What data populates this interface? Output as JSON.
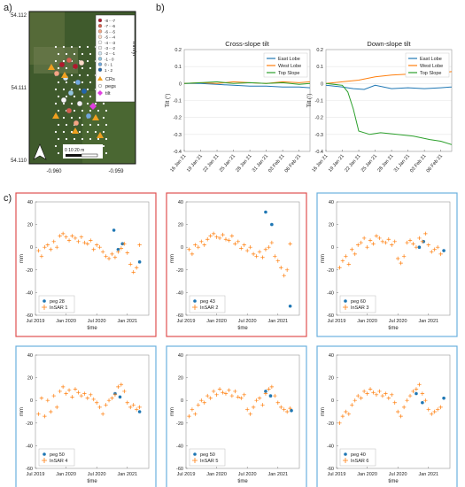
{
  "panel_labels": [
    "a)",
    "b)",
    "c)"
  ],
  "map": {
    "y_ticks": [
      "54.112",
      "54.111",
      "54.110"
    ],
    "x_ticks": [
      "-0.960",
      "-0.959"
    ],
    "legend_title": "mm/yr",
    "legend_items": [
      "-8 - -7",
      "-7 - -6",
      "-6 - -5",
      "-5 - -4",
      "-4 - -3",
      "-3 - -2",
      "-2 - -1",
      "-1 - 0",
      "0 - 1",
      "1 - 2"
    ],
    "legend_colors": [
      "#b2182b",
      "#d6604d",
      "#f4a582",
      "#fddbc7",
      "#f7f7f7",
      "#f0f0f0",
      "#d1e5f0",
      "#92c5de",
      "#6fa8dc",
      "#2166ac"
    ],
    "markers": [
      {
        "label": "CRs",
        "color": "#f0a020"
      },
      {
        "label": "pegs",
        "color": "#ffffff"
      },
      {
        "label": "tilt",
        "color": "#e040e0"
      }
    ],
    "scale_label": "0  10 20 m"
  },
  "chart_data": [
    {
      "type": "line",
      "title": "Cross-slope tilt",
      "ylabel": "Tilt (°)",
      "ylim": [
        -0.4,
        0.2
      ],
      "yticks": [
        "0.2",
        "0.1",
        "0",
        "-0.1",
        "-0.2",
        "-0.3",
        "-0.4"
      ],
      "xlim": [
        "2021-01-16",
        "2021-02-08"
      ],
      "xticks": [
        "16 Jan 21",
        "19 Jan 21",
        "22 Jan 21",
        "25 Jan 21",
        "28 Jan 21",
        "31 Jan 21",
        "03 Feb 21",
        "06 Feb 21"
      ],
      "legend": "top-right",
      "series": [
        {
          "name": "East Lobe",
          "color": "#1f77b4",
          "x": [
            "2021-01-16",
            "2021-01-19",
            "2021-01-22",
            "2021-01-25",
            "2021-01-28",
            "2021-01-31",
            "2021-02-03",
            "2021-02-06",
            "2021-02-08"
          ],
          "y": [
            0.0,
            0.0,
            -0.005,
            -0.01,
            -0.015,
            -0.015,
            -0.02,
            -0.02,
            -0.025
          ]
        },
        {
          "name": "West Lobe",
          "color": "#ff7f0e",
          "x": [
            "2021-01-16",
            "2021-01-19",
            "2021-01-22",
            "2021-01-25",
            "2021-01-28",
            "2021-01-31",
            "2021-02-03",
            "2021-02-06",
            "2021-02-08"
          ],
          "y": [
            0.0,
            0.005,
            0.0,
            0.01,
            0.005,
            0.0,
            0.01,
            0.005,
            0.01
          ]
        },
        {
          "name": "Top Slope",
          "color": "#2ca02c",
          "x": [
            "2021-01-16",
            "2021-01-19",
            "2021-01-22",
            "2021-01-25",
            "2021-01-28",
            "2021-01-31",
            "2021-02-03",
            "2021-02-06",
            "2021-02-08"
          ],
          "y": [
            0.0,
            0.005,
            0.01,
            0.0,
            0.005,
            0.0,
            0.005,
            -0.005,
            0.0
          ]
        }
      ]
    },
    {
      "type": "line",
      "title": "Down-slope tilt",
      "ylabel": "Tilt (°)",
      "ylim": [
        -0.4,
        0.2
      ],
      "yticks": [
        "0.2",
        "0.1",
        "0",
        "-0.1",
        "-0.2",
        "-0.3",
        "-0.4"
      ],
      "xlim": [
        "2021-01-16",
        "2021-02-08"
      ],
      "xticks": [
        "16 Jan 21",
        "19 Jan 21",
        "22 Jan 21",
        "25 Jan 21",
        "28 Jan 21",
        "31 Jan 21",
        "03 Feb 21",
        "06 Feb 21"
      ],
      "legend": "top-right",
      "series": [
        {
          "name": "East Lobe",
          "color": "#1f77b4",
          "x": [
            "2021-01-16",
            "2021-01-19",
            "2021-01-21",
            "2021-01-23",
            "2021-01-25",
            "2021-01-28",
            "2021-01-31",
            "2021-02-03",
            "2021-02-06",
            "2021-02-08"
          ],
          "y": [
            -0.01,
            -0.02,
            -0.03,
            -0.035,
            -0.01,
            -0.03,
            -0.025,
            -0.03,
            -0.025,
            -0.02
          ]
        },
        {
          "name": "West Lobe",
          "color": "#ff7f0e",
          "x": [
            "2021-01-16",
            "2021-01-19",
            "2021-01-22",
            "2021-01-25",
            "2021-01-28",
            "2021-01-31",
            "2021-02-03",
            "2021-02-06",
            "2021-02-08"
          ],
          "y": [
            0.0,
            0.01,
            0.02,
            0.04,
            0.05,
            0.055,
            0.06,
            0.065,
            0.07
          ]
        },
        {
          "name": "Top Slope",
          "color": "#2ca02c",
          "x": [
            "2021-01-16",
            "2021-01-19",
            "2021-01-20",
            "2021-01-21",
            "2021-01-22",
            "2021-01-24",
            "2021-01-26",
            "2021-01-29",
            "2021-02-01",
            "2021-02-04",
            "2021-02-06",
            "2021-02-08"
          ],
          "y": [
            0.0,
            -0.01,
            -0.05,
            -0.15,
            -0.28,
            -0.3,
            -0.29,
            -0.3,
            -0.31,
            -0.33,
            -0.34,
            -0.36
          ]
        }
      ]
    },
    {
      "type": "scatter",
      "ylabel": "mm",
      "xlabel": "time",
      "ylim": [
        -60,
        40
      ],
      "yticks": [
        "40",
        "20",
        "0",
        "-20",
        "-40",
        "-60"
      ],
      "xlim": [
        2019.5,
        2021.35
      ],
      "xticks": [
        "Jul 2019",
        "Jan 2020",
        "Jul 2020",
        "Jan 2021"
      ],
      "xtick_values": [
        2019.5,
        2020.0,
        2020.5,
        2021.0
      ],
      "legend": "bottom-left",
      "frame_color": "#e05050",
      "series": [
        {
          "name": "peg 28",
          "marker": "dot",
          "color": "#1f77b4",
          "x": [
            2020.78,
            2020.85,
            2020.92,
            2021.2
          ],
          "y": [
            15,
            -2,
            3,
            -13
          ]
        },
        {
          "name": "InSAR 1",
          "marker": "plus",
          "color": "#ff7f0e",
          "x": [
            2019.55,
            2019.6,
            2019.65,
            2019.7,
            2019.75,
            2019.8,
            2019.85,
            2019.9,
            2019.95,
            2020.0,
            2020.05,
            2020.1,
            2020.15,
            2020.2,
            2020.25,
            2020.3,
            2020.35,
            2020.4,
            2020.45,
            2020.5,
            2020.55,
            2020.6,
            2020.65,
            2020.7,
            2020.75,
            2020.8,
            2020.85,
            2020.9,
            2020.95,
            2021.0,
            2021.05,
            2021.1,
            2021.15,
            2021.2
          ],
          "y": [
            -3,
            -8,
            0,
            2,
            -2,
            5,
            0,
            10,
            12,
            9,
            6,
            10,
            8,
            5,
            9,
            4,
            3,
            6,
            -2,
            2,
            0,
            -4,
            -8,
            -10,
            -6,
            -9,
            -4,
            -1,
            3,
            -5,
            -15,
            -22,
            -18,
            2
          ]
        }
      ]
    },
    {
      "type": "scatter",
      "ylabel": "mm",
      "xlabel": "time",
      "ylim": [
        -60,
        40
      ],
      "yticks": [
        "40",
        "20",
        "0",
        "-20",
        "-40",
        "-60"
      ],
      "xlim": [
        2019.5,
        2021.35
      ],
      "xticks": [
        "Jul 2019",
        "Jan 2020",
        "Jul 2020",
        "Jan 2021"
      ],
      "xtick_values": [
        2019.5,
        2020.0,
        2020.5,
        2021.0
      ],
      "legend": "bottom-left",
      "frame_color": "#e05050",
      "series": [
        {
          "name": "peg 43",
          "marker": "dot",
          "color": "#1f77b4",
          "x": [
            2020.8,
            2020.9,
            2021.2
          ],
          "y": [
            31,
            20,
            -52
          ]
        },
        {
          "name": "InSAR 2",
          "marker": "plus",
          "color": "#ff7f0e",
          "x": [
            2019.55,
            2019.6,
            2019.65,
            2019.7,
            2019.75,
            2019.8,
            2019.85,
            2019.9,
            2019.95,
            2020.0,
            2020.05,
            2020.1,
            2020.15,
            2020.2,
            2020.25,
            2020.3,
            2020.35,
            2020.4,
            2020.45,
            2020.5,
            2020.55,
            2020.6,
            2020.65,
            2020.7,
            2020.75,
            2020.8,
            2020.85,
            2020.9,
            2020.95,
            2021.0,
            2021.05,
            2021.1,
            2021.15,
            2021.2
          ],
          "y": [
            -2,
            -6,
            2,
            0,
            5,
            2,
            7,
            10,
            12,
            9,
            8,
            11,
            7,
            6,
            10,
            3,
            5,
            -1,
            2,
            -3,
            0,
            -6,
            -8,
            -4,
            -9,
            -2,
            0,
            4,
            -8,
            -12,
            -18,
            -25,
            -20,
            3
          ]
        }
      ]
    },
    {
      "type": "scatter",
      "ylabel": "mm",
      "xlabel": "time",
      "ylim": [
        -60,
        40
      ],
      "yticks": [
        "40",
        "20",
        "0",
        "-20",
        "-40",
        "-60"
      ],
      "xlim": [
        2019.5,
        2021.35
      ],
      "xticks": [
        "Jul 2019",
        "Jan 2020",
        "Jul 2020",
        "Jan 2021"
      ],
      "xtick_values": [
        2019.5,
        2020.0,
        2020.5,
        2021.0
      ],
      "legend": "bottom-left",
      "frame_color": "#6ab0de",
      "series": [
        {
          "name": "peg 60",
          "marker": "dot",
          "color": "#1f77b4",
          "x": [
            2020.85,
            2020.92,
            2021.25
          ],
          "y": [
            0,
            5,
            -3
          ]
        },
        {
          "name": "InSAR 3",
          "marker": "plus",
          "color": "#ff7f0e",
          "x": [
            2019.55,
            2019.6,
            2019.65,
            2019.7,
            2019.75,
            2019.8,
            2019.85,
            2019.9,
            2019.95,
            2020.0,
            2020.05,
            2020.1,
            2020.15,
            2020.2,
            2020.25,
            2020.3,
            2020.35,
            2020.4,
            2020.45,
            2020.5,
            2020.55,
            2020.6,
            2020.65,
            2020.7,
            2020.75,
            2020.8,
            2020.85,
            2020.9,
            2020.95,
            2021.0,
            2021.05,
            2021.1,
            2021.15,
            2021.2
          ],
          "y": [
            -18,
            -12,
            -8,
            -15,
            -2,
            -6,
            2,
            4,
            8,
            0,
            6,
            3,
            10,
            8,
            5,
            4,
            7,
            2,
            5,
            -10,
            -14,
            -8,
            4,
            6,
            3,
            0,
            8,
            5,
            12,
            2,
            -4,
            -2,
            0,
            -6
          ]
        }
      ]
    },
    {
      "type": "scatter",
      "ylabel": "mm",
      "xlabel": "time",
      "ylim": [
        -60,
        40
      ],
      "yticks": [
        "40",
        "20",
        "0",
        "-20",
        "-40",
        "-60"
      ],
      "xlim": [
        2019.5,
        2021.35
      ],
      "xticks": [
        "Jul 2019",
        "Jan 2020",
        "Jul 2020",
        "Jan 2021"
      ],
      "xtick_values": [
        2019.5,
        2020.0,
        2020.5,
        2021.0
      ],
      "legend": "bottom-left",
      "frame_color": "#6ab0de",
      "series": [
        {
          "name": "peg 50",
          "marker": "dot",
          "color": "#1f77b4",
          "x": [
            2020.8,
            2020.88,
            2021.2
          ],
          "y": [
            6,
            3,
            -10
          ]
        },
        {
          "name": "InSAR 4",
          "marker": "plus",
          "color": "#ff7f0e",
          "x": [
            2019.55,
            2019.6,
            2019.65,
            2019.7,
            2019.75,
            2019.8,
            2019.85,
            2019.9,
            2019.95,
            2020.0,
            2020.05,
            2020.1,
            2020.15,
            2020.2,
            2020.25,
            2020.3,
            2020.35,
            2020.4,
            2020.45,
            2020.5,
            2020.55,
            2020.6,
            2020.65,
            2020.7,
            2020.75,
            2020.8,
            2020.85,
            2020.9,
            2020.95,
            2021.0,
            2021.05,
            2021.1,
            2021.15,
            2021.2
          ],
          "y": [
            -12,
            2,
            -14,
            0,
            -10,
            4,
            -6,
            8,
            12,
            6,
            9,
            3,
            10,
            7,
            4,
            6,
            2,
            5,
            1,
            -2,
            -6,
            -12,
            -4,
            0,
            2,
            5,
            12,
            14,
            8,
            -2,
            -6,
            -4,
            -8,
            -6
          ]
        }
      ]
    },
    {
      "type": "scatter",
      "ylabel": "mm",
      "xlabel": "time",
      "ylim": [
        -60,
        40
      ],
      "yticks": [
        "40",
        "20",
        "0",
        "-20",
        "-40",
        "-60"
      ],
      "xlim": [
        2019.5,
        2021.35
      ],
      "xticks": [
        "Jul 2019",
        "Jan 2020",
        "Jul 2020",
        "Jan 2021"
      ],
      "xtick_values": [
        2019.5,
        2020.0,
        2020.5,
        2021.0
      ],
      "legend": "bottom-left",
      "frame_color": "#6ab0de",
      "series": [
        {
          "name": "peg 50",
          "marker": "dot",
          "color": "#1f77b4",
          "x": [
            2020.8,
            2020.88,
            2021.22
          ],
          "y": [
            8,
            4,
            -9
          ]
        },
        {
          "name": "InSAR 5",
          "marker": "plus",
          "color": "#ff7f0e",
          "x": [
            2019.55,
            2019.6,
            2019.65,
            2019.7,
            2019.75,
            2019.8,
            2019.85,
            2019.9,
            2019.95,
            2020.0,
            2020.05,
            2020.1,
            2020.15,
            2020.2,
            2020.25,
            2020.3,
            2020.35,
            2020.4,
            2020.45,
            2020.5,
            2020.55,
            2020.6,
            2020.65,
            2020.7,
            2020.75,
            2020.8,
            2020.85,
            2020.9,
            2020.95,
            2021.0,
            2021.05,
            2021.1,
            2021.15,
            2021.2
          ],
          "y": [
            -14,
            -8,
            -12,
            -4,
            0,
            -2,
            4,
            2,
            8,
            5,
            10,
            7,
            6,
            9,
            4,
            8,
            3,
            2,
            5,
            -8,
            -12,
            -6,
            0,
            2,
            -4,
            6,
            10,
            12,
            4,
            -2,
            -6,
            -8,
            -10,
            -7
          ]
        }
      ]
    },
    {
      "type": "scatter",
      "ylabel": "mm",
      "xlabel": "time",
      "ylim": [
        -60,
        40
      ],
      "yticks": [
        "40",
        "20",
        "0",
        "-20",
        "-40",
        "-60"
      ],
      "xlim": [
        2019.5,
        2021.35
      ],
      "xticks": [
        "Jul 2019",
        "Jan 2020",
        "Jul 2020",
        "Jan 2021"
      ],
      "xtick_values": [
        2019.5,
        2020.0,
        2020.5,
        2021.0
      ],
      "legend": "bottom-left",
      "frame_color": "#6ab0de",
      "series": [
        {
          "name": "peg 40",
          "marker": "dot",
          "color": "#1f77b4",
          "x": [
            2020.8,
            2020.9,
            2021.25
          ],
          "y": [
            6,
            -2,
            2
          ]
        },
        {
          "name": "InSAR 6",
          "marker": "plus",
          "color": "#ff7f0e",
          "x": [
            2019.55,
            2019.6,
            2019.65,
            2019.7,
            2019.75,
            2019.8,
            2019.85,
            2019.9,
            2019.95,
            2020.0,
            2020.05,
            2020.1,
            2020.15,
            2020.2,
            2020.25,
            2020.3,
            2020.35,
            2020.4,
            2020.45,
            2020.5,
            2020.55,
            2020.6,
            2020.65,
            2020.7,
            2020.75,
            2020.8,
            2020.85,
            2020.9,
            2020.95,
            2021.0,
            2021.05,
            2021.1,
            2021.15,
            2021.2
          ],
          "y": [
            -20,
            -14,
            -10,
            -12,
            -4,
            0,
            4,
            2,
            8,
            6,
            10,
            7,
            5,
            8,
            4,
            6,
            2,
            5,
            -2,
            -10,
            -14,
            -6,
            0,
            4,
            8,
            10,
            14,
            6,
            0,
            -8,
            -12,
            -10,
            -8,
            -6
          ]
        }
      ]
    }
  ]
}
